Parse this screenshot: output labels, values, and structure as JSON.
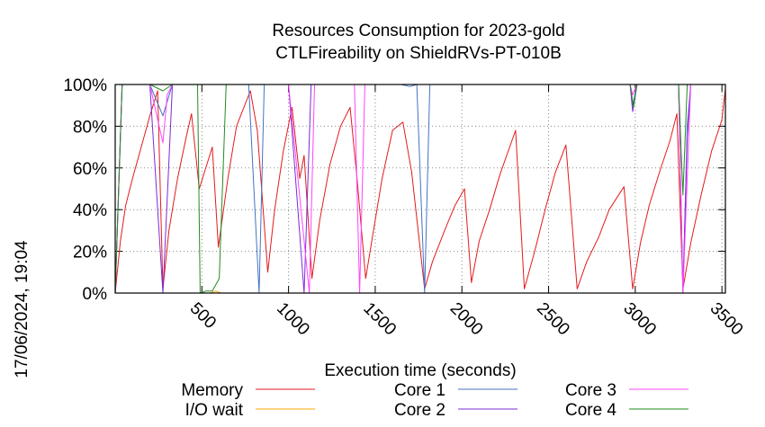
{
  "chart_data": {
    "type": "line",
    "title": "Resources Consumption for 2023-gold",
    "subtitle": "CTLFireability on ShieldRVs-PT-010B",
    "xlabel": "Execution time (seconds)",
    "ylabel": "",
    "side_label": "17/06/2024, 19:04",
    "xlim": [
      0,
      3520
    ],
    "ylim": [
      0,
      100
    ],
    "xticks": [
      500,
      1000,
      1500,
      2000,
      2500,
      3000,
      3500
    ],
    "yticks": [
      0,
      20,
      40,
      60,
      80,
      100
    ],
    "ytick_labels": [
      "0%",
      "20%",
      "40%",
      "60%",
      "80%",
      "100%"
    ],
    "grid": true,
    "legend_position": "bottom",
    "series": [
      {
        "name": "Memory",
        "color": "#e41a1c",
        "points": [
          [
            0,
            0
          ],
          [
            30,
            25
          ],
          [
            60,
            42
          ],
          [
            100,
            55
          ],
          [
            150,
            70
          ],
          [
            200,
            85
          ],
          [
            245,
            97
          ],
          [
            275,
            2
          ],
          [
            310,
            30
          ],
          [
            360,
            55
          ],
          [
            410,
            75
          ],
          [
            440,
            86
          ],
          [
            485,
            50
          ],
          [
            560,
            70
          ],
          [
            595,
            22
          ],
          [
            650,
            55
          ],
          [
            700,
            80
          ],
          [
            780,
            97
          ],
          [
            820,
            78
          ],
          [
            880,
            10
          ],
          [
            920,
            40
          ],
          [
            970,
            68
          ],
          [
            1020,
            89
          ],
          [
            1065,
            55
          ],
          [
            1090,
            66
          ],
          [
            1135,
            7
          ],
          [
            1180,
            35
          ],
          [
            1240,
            62
          ],
          [
            1300,
            80
          ],
          [
            1355,
            89
          ],
          [
            1395,
            55
          ],
          [
            1445,
            7
          ],
          [
            1490,
            30
          ],
          [
            1540,
            55
          ],
          [
            1600,
            78
          ],
          [
            1630,
            80
          ],
          [
            1660,
            82
          ],
          [
            1710,
            58
          ],
          [
            1785,
            2
          ],
          [
            1830,
            15
          ],
          [
            1900,
            30
          ],
          [
            1960,
            42
          ],
          [
            2015,
            50
          ],
          [
            2055,
            5
          ],
          [
            2100,
            25
          ],
          [
            2160,
            40
          ],
          [
            2220,
            57
          ],
          [
            2310,
            78
          ],
          [
            2360,
            2
          ],
          [
            2420,
            20
          ],
          [
            2480,
            40
          ],
          [
            2540,
            58
          ],
          [
            2600,
            71
          ],
          [
            2665,
            2
          ],
          [
            2720,
            15
          ],
          [
            2790,
            27
          ],
          [
            2850,
            40
          ],
          [
            2935,
            51
          ],
          [
            2985,
            2
          ],
          [
            3030,
            24
          ],
          [
            3080,
            42
          ],
          [
            3140,
            58
          ],
          [
            3200,
            73
          ],
          [
            3240,
            86
          ],
          [
            3275,
            2
          ],
          [
            3320,
            24
          ],
          [
            3380,
            47
          ],
          [
            3440,
            68
          ],
          [
            3500,
            83
          ],
          [
            3520,
            98
          ]
        ]
      },
      {
        "name": "I/O wait",
        "color": "#ffa500",
        "points": [
          [
            0,
            0
          ],
          [
            520,
            0
          ],
          [
            550,
            0
          ],
          [
            580,
            1
          ],
          [
            610,
            0
          ],
          [
            1000,
            0
          ],
          [
            1720,
            0
          ],
          [
            1740,
            0
          ],
          [
            3520,
            0
          ]
        ]
      },
      {
        "name": "Core 1",
        "color": "#4472c4",
        "points": [
          [
            0,
            0
          ],
          [
            40,
            100
          ],
          [
            200,
            100
          ],
          [
            275,
            85
          ],
          [
            330,
            100
          ],
          [
            570,
            100
          ],
          [
            770,
            100
          ],
          [
            830,
            0
          ],
          [
            860,
            100
          ],
          [
            1000,
            100
          ],
          [
            1110,
            100
          ],
          [
            1180,
            100
          ],
          [
            1650,
            100
          ],
          [
            1700,
            99
          ],
          [
            1740,
            100
          ],
          [
            1785,
            0
          ],
          [
            1815,
            100
          ],
          [
            2970,
            100
          ],
          [
            2985,
            90
          ],
          [
            3010,
            100
          ],
          [
            3250,
            100
          ],
          [
            3275,
            0
          ],
          [
            3300,
            80
          ],
          [
            3320,
            100
          ],
          [
            3520,
            100
          ]
        ]
      },
      {
        "name": "Core 2",
        "color": "#7b2bd6",
        "points": [
          [
            0,
            0
          ],
          [
            40,
            100
          ],
          [
            200,
            100
          ],
          [
            275,
            0
          ],
          [
            330,
            100
          ],
          [
            700,
            100
          ],
          [
            1000,
            100
          ],
          [
            1090,
            0
          ],
          [
            1130,
            100
          ],
          [
            1650,
            100
          ],
          [
            1700,
            100
          ],
          [
            1740,
            100
          ],
          [
            2970,
            100
          ],
          [
            2985,
            87
          ],
          [
            3010,
            100
          ],
          [
            3250,
            100
          ],
          [
            3275,
            0
          ],
          [
            3300,
            75
          ],
          [
            3320,
            100
          ],
          [
            3520,
            100
          ]
        ]
      },
      {
        "name": "Core 3",
        "color": "#ff44ff",
        "points": [
          [
            0,
            0
          ],
          [
            40,
            100
          ],
          [
            200,
            100
          ],
          [
            275,
            72
          ],
          [
            300,
            95
          ],
          [
            330,
            100
          ],
          [
            420,
            100
          ],
          [
            560,
            100
          ],
          [
            800,
            100
          ],
          [
            1000,
            100
          ],
          [
            1120,
            0
          ],
          [
            1150,
            100
          ],
          [
            1380,
            100
          ],
          [
            1410,
            0
          ],
          [
            1440,
            100
          ],
          [
            2970,
            100
          ],
          [
            2985,
            95
          ],
          [
            3010,
            100
          ],
          [
            3250,
            100
          ],
          [
            3275,
            0
          ],
          [
            3320,
            100
          ],
          [
            3520,
            100
          ]
        ]
      },
      {
        "name": "Core 4",
        "color": "#228b22",
        "points": [
          [
            0,
            0
          ],
          [
            40,
            100
          ],
          [
            200,
            100
          ],
          [
            275,
            97
          ],
          [
            330,
            100
          ],
          [
            475,
            100
          ],
          [
            490,
            0
          ],
          [
            525,
            1
          ],
          [
            560,
            1
          ],
          [
            600,
            7
          ],
          [
            640,
            100
          ],
          [
            700,
            100
          ],
          [
            1700,
            100
          ],
          [
            2970,
            100
          ],
          [
            2990,
            89
          ],
          [
            3010,
            100
          ],
          [
            3250,
            100
          ],
          [
            3275,
            47
          ],
          [
            3300,
            100
          ],
          [
            3520,
            100
          ]
        ]
      }
    ]
  }
}
